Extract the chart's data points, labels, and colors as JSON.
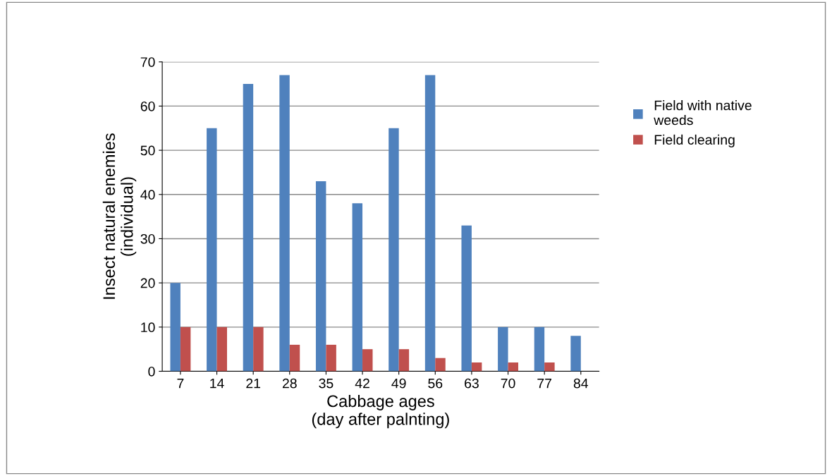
{
  "chart_data": {
    "type": "bar",
    "xlabel": "Cabbage ages\n(day after palnting)",
    "ylabel": "Insect natural enemies\n(individual)",
    "categories": [
      "7",
      "14",
      "21",
      "28",
      "35",
      "42",
      "49",
      "56",
      "63",
      "70",
      "77",
      "84"
    ],
    "series": [
      {
        "name": "Field with native\nweeds",
        "color": "#4f81bd",
        "values": [
          20,
          55,
          65,
          67,
          43,
          38,
          55,
          67,
          33,
          10,
          10,
          8
        ]
      },
      {
        "name": "Field clearing",
        "color": "#c0504d",
        "values": [
          10,
          10,
          10,
          6,
          6,
          5,
          5,
          3,
          2,
          2,
          2,
          0
        ]
      }
    ],
    "ylim": [
      0,
      70
    ],
    "yticks": [
      0,
      10,
      20,
      30,
      40,
      50,
      60,
      70
    ],
    "grid": "y",
    "legend": "right"
  }
}
